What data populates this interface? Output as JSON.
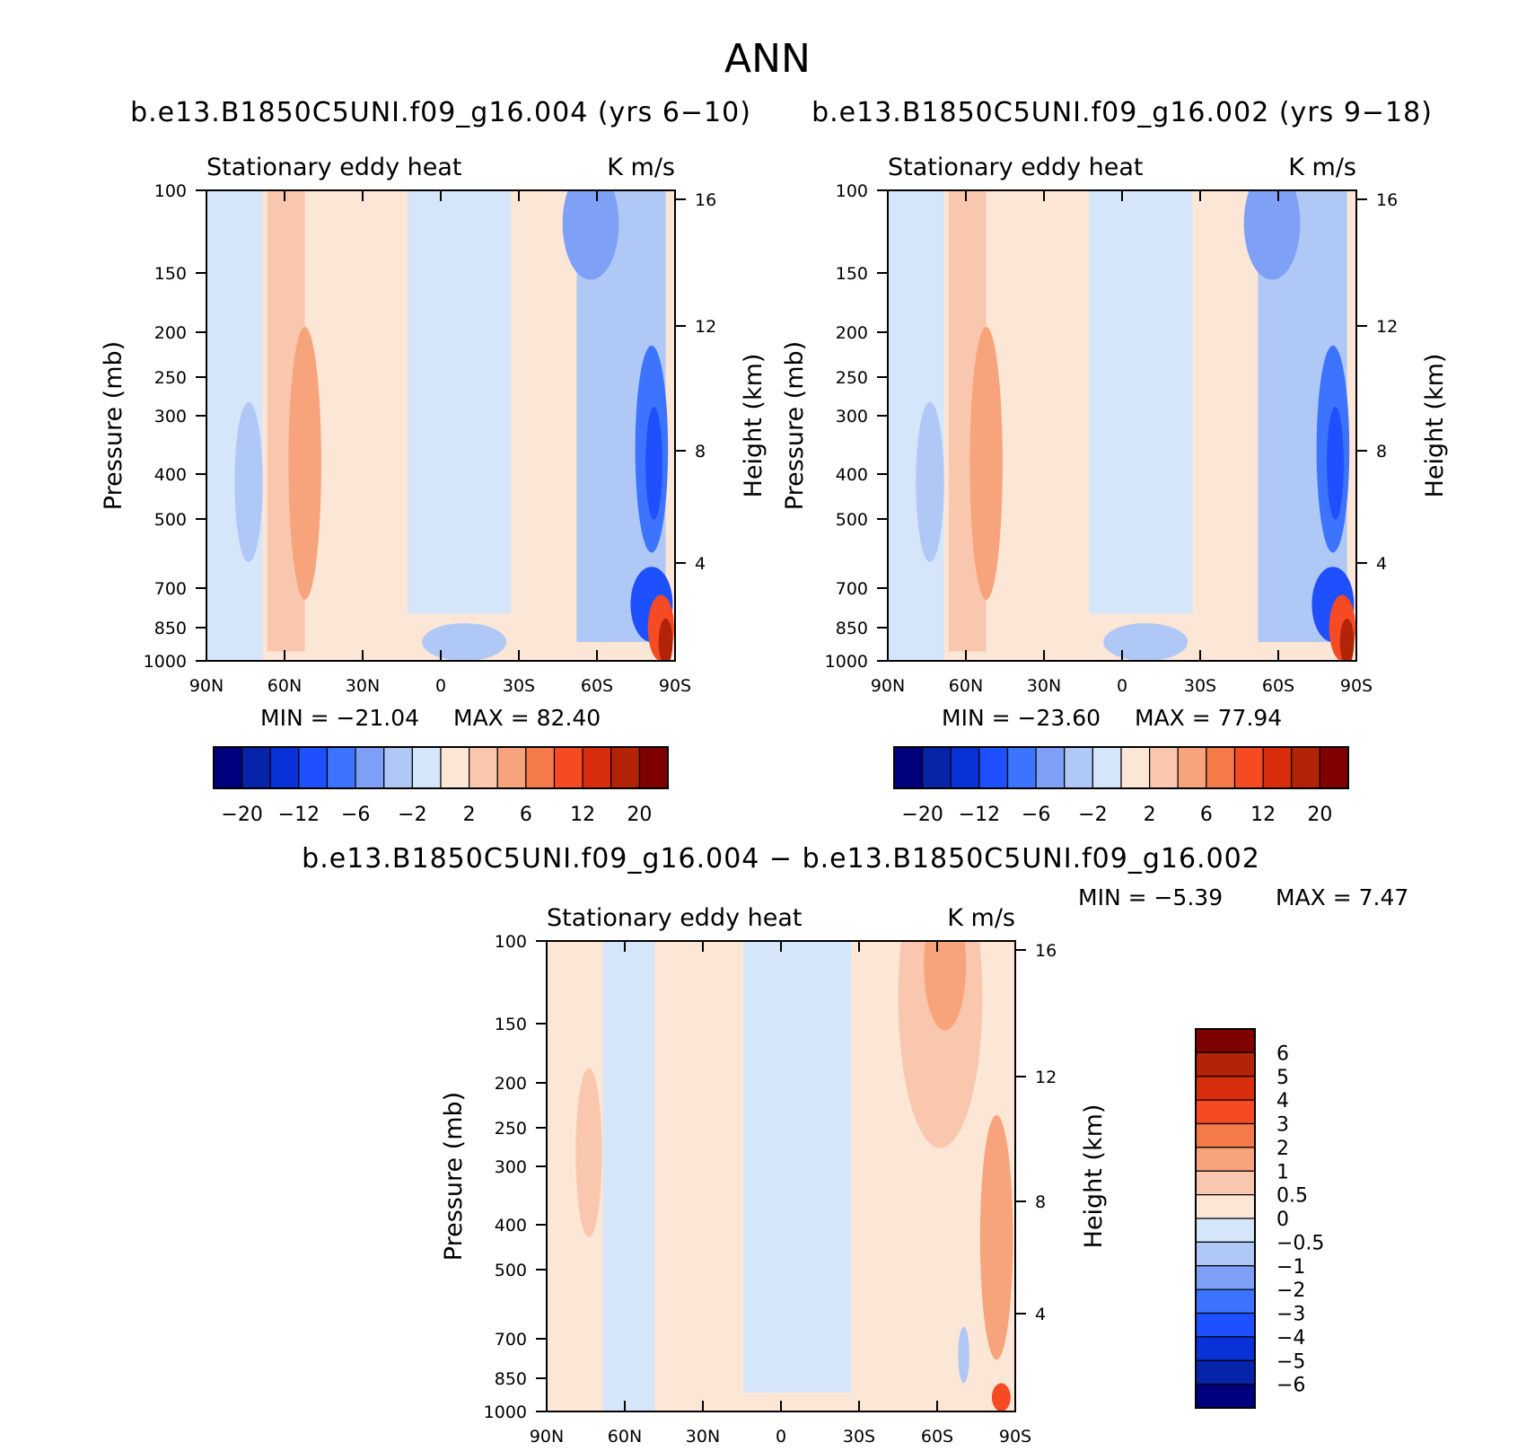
{
  "main_title": "ANN",
  "colors": {
    "ramp": [
      "#00007f",
      "#0524a8",
      "#0832d8",
      "#1e50ff",
      "#3c74ff",
      "#7ea0f7",
      "#b0c8f6",
      "#d5e6fa",
      "#fce6d6",
      "#f9c7ae",
      "#f7a47c",
      "#f57a4a",
      "#f54a22",
      "#d72d0c",
      "#b22308",
      "#7f0000"
    ]
  },
  "chart_data": [
    {
      "type": "heatmap",
      "title": "b.e13.B1850C5UNI.f09_g16.004 (yrs 6−10)",
      "left_label": "Stationary eddy heat",
      "right_label": "K m/s",
      "ylabel": "Pressure (mb)",
      "y2label": "Height (km)",
      "x_ticks": [
        "90N",
        "60N",
        "30N",
        "0",
        "30S",
        "60S",
        "90S"
      ],
      "y_ticks": [
        "100",
        "150",
        "200",
        "250",
        "300",
        "400",
        "500",
        "700",
        "850",
        "1000"
      ],
      "y2_ticks": [
        "16",
        "12",
        "8",
        "4"
      ],
      "min_label": "MIN = −21.04",
      "max_label": "MAX = 82.40",
      "min": -21.04,
      "max": 82.4,
      "colorbar": {
        "orientation": "horizontal",
        "labels": [
          "−20",
          "−12",
          "−6",
          "−2",
          "2",
          "6",
          "12",
          "20"
        ]
      }
    },
    {
      "type": "heatmap",
      "title": "b.e13.B1850C5UNI.f09_g16.002 (yrs 9−18)",
      "left_label": "Stationary eddy heat",
      "right_label": "K m/s",
      "ylabel": "Pressure (mb)",
      "y2label": "Height (km)",
      "x_ticks": [
        "90N",
        "60N",
        "30N",
        "0",
        "30S",
        "60S",
        "90S"
      ],
      "y_ticks": [
        "100",
        "150",
        "200",
        "250",
        "300",
        "400",
        "500",
        "700",
        "850",
        "1000"
      ],
      "y2_ticks": [
        "16",
        "12",
        "8",
        "4"
      ],
      "min_label": "MIN = −23.60",
      "max_label": "MAX = 77.94",
      "min": -23.6,
      "max": 77.94,
      "colorbar": {
        "orientation": "horizontal",
        "labels": [
          "−20",
          "−12",
          "−6",
          "−2",
          "2",
          "6",
          "12",
          "20"
        ]
      }
    },
    {
      "type": "heatmap",
      "title": "b.e13.B1850C5UNI.f09_g16.004 − b.e13.B1850C5UNI.f09_g16.002",
      "left_label": "Stationary eddy heat",
      "right_label": "K m/s",
      "ylabel": "Pressure (mb)",
      "y2label": "Height (km)",
      "x_ticks": [
        "90N",
        "60N",
        "30N",
        "0",
        "30S",
        "60S",
        "90S"
      ],
      "y_ticks": [
        "100",
        "150",
        "200",
        "250",
        "300",
        "400",
        "500",
        "700",
        "850",
        "1000"
      ],
      "y2_ticks": [
        "16",
        "12",
        "8",
        "4"
      ],
      "min_label": "MIN = −5.39",
      "max_label": "MAX = 7.47",
      "min": -5.39,
      "max": 7.47,
      "colorbar": {
        "orientation": "vertical",
        "labels": [
          "6",
          "5",
          "4",
          "3",
          "2",
          "1",
          "0.5",
          "0",
          "−0.5",
          "−1",
          "−2",
          "−3",
          "−4",
          "−5",
          "−6"
        ]
      }
    }
  ]
}
